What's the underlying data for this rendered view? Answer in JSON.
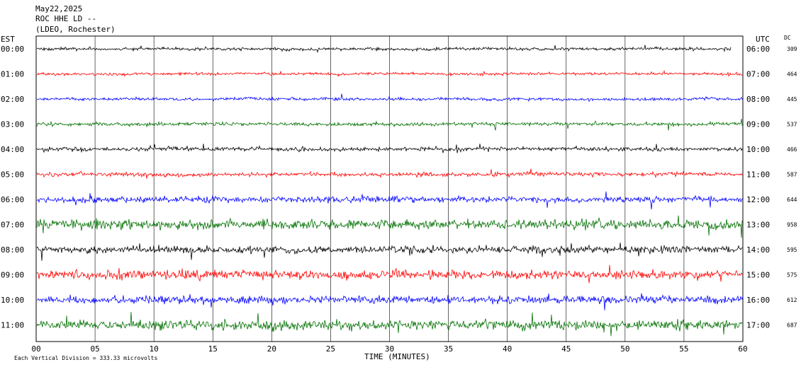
{
  "chart_data": {
    "type": "line",
    "title_lines": [
      "May22,2025",
      "ROC HHE LD --",
      "(LDEO, Rochester)"
    ],
    "left_axis_label": "EST",
    "right_axis_label": "UTC",
    "dc_label": "DC",
    "xlabel": "TIME (MINUTES)",
    "xlim": [
      0,
      60
    ],
    "x_ticks": [
      "00",
      "05",
      "10",
      "15",
      "20",
      "25",
      "30",
      "35",
      "40",
      "45",
      "50",
      "55",
      "60"
    ],
    "scale_note": "Each Vertical Division = 333.33 microvolts",
    "grid": true,
    "colors": {
      "black": "#000000",
      "red": "#ff0000",
      "blue": "#0000ff",
      "green": "#007000"
    },
    "series": [
      {
        "est": "00:00",
        "utc": "06:00",
        "dc": "309",
        "color": "#000000",
        "amp": 3.5,
        "end": 59.0
      },
      {
        "est": "01:00",
        "utc": "07:00",
        "dc": "464",
        "color": "#ff0000",
        "amp": 3.0,
        "end": 60
      },
      {
        "est": "02:00",
        "utc": "08:00",
        "dc": "445",
        "color": "#0000ff",
        "amp": 3.5,
        "end": 60
      },
      {
        "est": "03:00",
        "utc": "09:00",
        "dc": "537",
        "color": "#007000",
        "amp": 4.0,
        "end": 60
      },
      {
        "est": "04:00",
        "utc": "10:00",
        "dc": "466",
        "color": "#000000",
        "amp": 4.5,
        "end": 60
      },
      {
        "est": "05:00",
        "utc": "11:00",
        "dc": "587",
        "color": "#ff0000",
        "amp": 4.5,
        "end": 60
      },
      {
        "est": "06:00",
        "utc": "12:00",
        "dc": "644",
        "color": "#0000ff",
        "amp": 7.0,
        "end": 60
      },
      {
        "est": "07:00",
        "utc": "13:00",
        "dc": "958",
        "color": "#007000",
        "amp": 11.0,
        "end": 60
      },
      {
        "est": "08:00",
        "utc": "14:00",
        "dc": "595",
        "color": "#000000",
        "amp": 8.0,
        "end": 60
      },
      {
        "est": "09:00",
        "utc": "15:00",
        "dc": "575",
        "color": "#ff0000",
        "amp": 10.0,
        "end": 60
      },
      {
        "est": "10:00",
        "utc": "16:00",
        "dc": "612",
        "color": "#0000ff",
        "amp": 9.0,
        "end": 60
      },
      {
        "est": "11:00",
        "utc": "17:00",
        "dc": "687",
        "color": "#007000",
        "amp": 11.0,
        "end": 60
      }
    ]
  }
}
